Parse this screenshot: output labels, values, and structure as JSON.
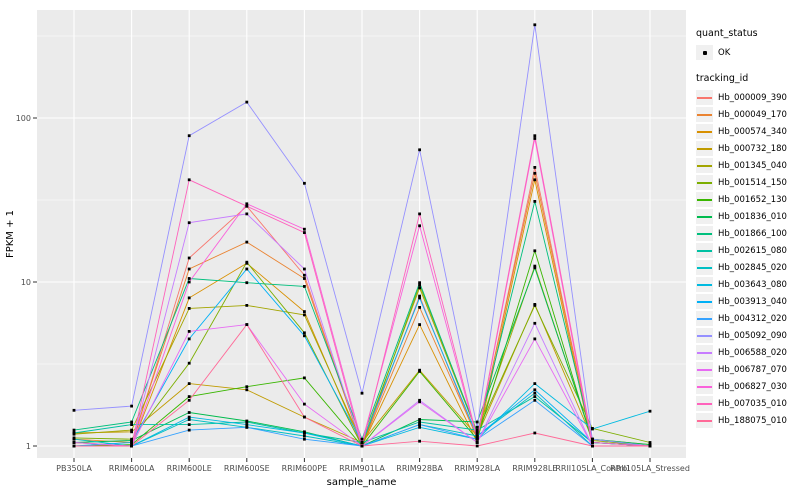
{
  "chart_data": {
    "type": "line",
    "title": "",
    "xlabel": "sample_name",
    "ylabel": "FPKM + 1",
    "yscale": "log10",
    "ylim": [
      0.84,
      430
    ],
    "yticks": [
      1,
      10,
      100
    ],
    "ytick_labels": [
      "1",
      "10",
      "100"
    ],
    "minor_yticks": [
      3.162,
      31.62,
      316.2
    ],
    "grid": true,
    "panel_bg": "#EBEBEB",
    "grid_color": "#FFFFFF",
    "tick_label_color": "#4D4D4D",
    "point_color": "#000000",
    "point_shape": "square",
    "legend_position": "right",
    "categories": [
      "PB350LA",
      "RRIM600LA",
      "RRIM600LE",
      "RRIM600SE",
      "RRIM600PE",
      "RRIM901LA",
      "RRIM928BA",
      "RRIM928LA",
      "RRIM928LE",
      "RRII105LA_Control",
      "RRII105LA_Stressed"
    ],
    "series": [
      {
        "name": "Hb_000009_390",
        "color": "#F8766D",
        "values": [
          1.05,
          1.0,
          14,
          29,
          11,
          1.0,
          8.2,
          1.1,
          50,
          1.05,
          1.0
        ]
      },
      {
        "name": "Hb_000049_170",
        "color": "#EA8331",
        "values": [
          1.1,
          1.05,
          12,
          17.5,
          10.5,
          1.0,
          7.0,
          1.12,
          46,
          1.05,
          1.0
        ]
      },
      {
        "name": "Hb_000574_340",
        "color": "#D89000",
        "values": [
          1.05,
          1.0,
          8.0,
          13,
          6.6,
          1.0,
          5.5,
          1.05,
          42,
          1.0,
          1.0
        ]
      },
      {
        "name": "Hb_000732_180",
        "color": "#C09B00",
        "values": [
          1.2,
          1.22,
          2.4,
          2.2,
          1.5,
          1.05,
          2.9,
          1.15,
          7.3,
          1.1,
          1.02
        ]
      },
      {
        "name": "Hb_001345_040",
        "color": "#A3A500",
        "values": [
          1.18,
          1.25,
          6.9,
          7.2,
          6.3,
          1.05,
          9.2,
          1.2,
          12.5,
          1.08,
          1.0
        ]
      },
      {
        "name": "Hb_001514_150",
        "color": "#7CAE00",
        "values": [
          1.12,
          1.1,
          3.2,
          13.2,
          4.9,
          1.0,
          9.6,
          1.22,
          7.2,
          1.28,
          1.05
        ]
      },
      {
        "name": "Hb_001652_130",
        "color": "#39B600",
        "values": [
          1.0,
          1.02,
          2.0,
          2.3,
          2.6,
          1.0,
          2.85,
          1.1,
          15.5,
          1.05,
          1.0
        ]
      },
      {
        "name": "Hb_001836_010",
        "color": "#00BB4E",
        "values": [
          1.05,
          1.08,
          1.6,
          1.42,
          1.22,
          1.0,
          1.45,
          1.4,
          12.2,
          1.1,
          1.02
        ]
      },
      {
        "name": "Hb_001866_100",
        "color": "#00BF7D",
        "values": [
          1.25,
          1.4,
          10.5,
          9.9,
          9.4,
          1.1,
          9.9,
          1.2,
          31,
          1.1,
          1.0
        ]
      },
      {
        "name": "Hb_002615_080",
        "color": "#00C1A3",
        "values": [
          1.2,
          1.35,
          1.35,
          1.4,
          1.2,
          1.05,
          1.4,
          1.25,
          2.0,
          1.05,
          1.0
        ]
      },
      {
        "name": "Hb_002845_020",
        "color": "#00BFC4",
        "values": [
          1.1,
          1.0,
          1.45,
          1.3,
          1.15,
          1.0,
          1.35,
          1.15,
          2.1,
          1.0,
          1.0
        ]
      },
      {
        "name": "Hb_003643_080",
        "color": "#00BAE0",
        "values": [
          1.0,
          1.0,
          1.5,
          1.35,
          1.2,
          1.0,
          1.3,
          1.1,
          2.4,
          1.27,
          1.63
        ]
      },
      {
        "name": "Hb_003913_040",
        "color": "#00B0F6",
        "values": [
          1.0,
          1.05,
          4.5,
          12,
          4.7,
          1.05,
          8.0,
          1.15,
          2.2,
          1.05,
          1.0
        ]
      },
      {
        "name": "Hb_004312_020",
        "color": "#35A2FF",
        "values": [
          1.0,
          1.0,
          1.25,
          1.3,
          1.1,
          1.0,
          1.35,
          1.1,
          1.9,
          1.0,
          1.0
        ]
      },
      {
        "name": "Hb_005092_090",
        "color": "#9590FF",
        "values": [
          1.65,
          1.75,
          78,
          125,
          40,
          2.1,
          64,
          1.3,
          370,
          1.1,
          1.0
        ]
      },
      {
        "name": "Hb_006588_020",
        "color": "#C77CFF",
        "values": [
          1.0,
          1.0,
          23,
          26,
          12,
          1.0,
          1.9,
          1.05,
          5.6,
          1.0,
          1.0
        ]
      },
      {
        "name": "Hb_006787_070",
        "color": "#E76BF3",
        "values": [
          1.05,
          1.0,
          5.0,
          5.5,
          1.8,
          1.0,
          1.86,
          1.05,
          4.5,
          1.0,
          1.0
        ]
      },
      {
        "name": "Hb_006827_030",
        "color": "#FA62DB",
        "values": [
          1.0,
          1.0,
          10,
          30,
          21,
          1.05,
          22,
          1.1,
          75,
          1.0,
          1.0
        ]
      },
      {
        "name": "Hb_007035_010",
        "color": "#FF62BC",
        "values": [
          1.0,
          1.0,
          42,
          29,
          20,
          1.0,
          26,
          1.12,
          78,
          1.05,
          1.0
        ]
      },
      {
        "name": "Hb_188075_010",
        "color": "#FF6A98",
        "values": [
          1.0,
          1.0,
          1.9,
          5.5,
          1.5,
          1.0,
          1.07,
          1.0,
          1.2,
          1.0,
          1.0
        ]
      }
    ]
  },
  "legend": {
    "quant_status": {
      "title": "quant_status",
      "items": [
        {
          "label": "OK",
          "marker": "black-point"
        }
      ]
    },
    "tracking_id": {
      "title": "tracking_id"
    }
  },
  "axes": {
    "x_title": "sample_name",
    "y_title": "FPKM + 1"
  }
}
